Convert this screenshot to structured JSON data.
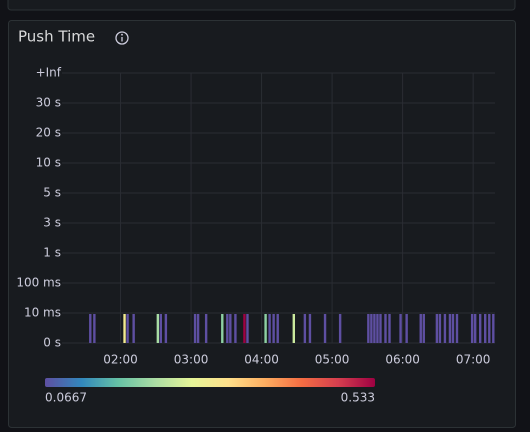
{
  "chart_data": {
    "type": "heatmap",
    "title": "Push Time",
    "y_categories": [
      "0 s",
      "10 ms",
      "100 ms",
      "1 s",
      "3 s",
      "5 s",
      "10 s",
      "20 s",
      "30 s",
      "+Inf"
    ],
    "xlim": [
      1.17,
      7.31
    ],
    "xticks": [
      {
        "value": 2,
        "label": "02:00"
      },
      {
        "value": 3,
        "label": "03:00"
      },
      {
        "value": 4,
        "label": "04:00"
      },
      {
        "value": 5,
        "label": "05:00"
      },
      {
        "value": 6,
        "label": "06:00"
      },
      {
        "value": 7,
        "label": "07:00"
      }
    ],
    "x": [
      1.571,
      1.629,
      2.057,
      2.1,
      2.186,
      2.529,
      2.571,
      2.643,
      3.057,
      3.1,
      3.214,
      3.443,
      3.514,
      3.557,
      3.629,
      3.757,
      3.8,
      4.057,
      4.114,
      4.171,
      4.229,
      4.457,
      4.614,
      4.686,
      4.9,
      5.114,
      5.514,
      5.557,
      5.6,
      5.643,
      5.686,
      5.757,
      5.814,
      5.971,
      6.057,
      6.257,
      6.3,
      6.486,
      6.529,
      6.6,
      6.671,
      6.714,
      6.771,
      6.986,
      7.029,
      7.1,
      7.171,
      7.229,
      7.286
    ],
    "y": [
      "10 ms",
      "10 ms",
      "10 ms",
      "10 ms",
      "10 ms",
      "10 ms",
      "10 ms",
      "10 ms",
      "10 ms",
      "10 ms",
      "10 ms",
      "10 ms",
      "10 ms",
      "10 ms",
      "10 ms",
      "10 ms",
      "10 ms",
      "10 ms",
      "10 ms",
      "10 ms",
      "10 ms",
      "10 ms",
      "10 ms",
      "10 ms",
      "10 ms",
      "10 ms",
      "10 ms",
      "10 ms",
      "10 ms",
      "10 ms",
      "10 ms",
      "10 ms",
      "10 ms",
      "10 ms",
      "10 ms",
      "10 ms",
      "10 ms",
      "10 ms",
      "10 ms",
      "10 ms",
      "10 ms",
      "10 ms",
      "10 ms",
      "10 ms",
      "10 ms",
      "10 ms",
      "10 ms",
      "10 ms",
      "10 ms"
    ],
    "values": [
      0.0667,
      0.0667,
      0.3,
      0.0667,
      0.0667,
      0.22,
      0.0667,
      0.0667,
      0.0667,
      0.0667,
      0.0667,
      0.2,
      0.0667,
      0.0667,
      0.0667,
      0.533,
      0.0667,
      0.2,
      0.0667,
      0.0667,
      0.0667,
      0.25,
      0.0667,
      0.0667,
      0.0667,
      0.0667,
      0.0667,
      0.0667,
      0.0667,
      0.0667,
      0.0667,
      0.0667,
      0.0667,
      0.0667,
      0.0667,
      0.0667,
      0.0667,
      0.0667,
      0.0667,
      0.0667,
      0.0667,
      0.0667,
      0.0667,
      0.0667,
      0.0667,
      0.0667,
      0.0667,
      0.0667,
      0.0667
    ],
    "color_scale": [
      "#5e4fa2",
      "#3288bd",
      "#66c2a5",
      "#abdda4",
      "#e6f598",
      "#fee08b",
      "#fdae61",
      "#f46d43",
      "#d53e4f",
      "#9e0142"
    ],
    "color_min": 0.0667,
    "color_max": 0.533,
    "grid": true
  }
}
